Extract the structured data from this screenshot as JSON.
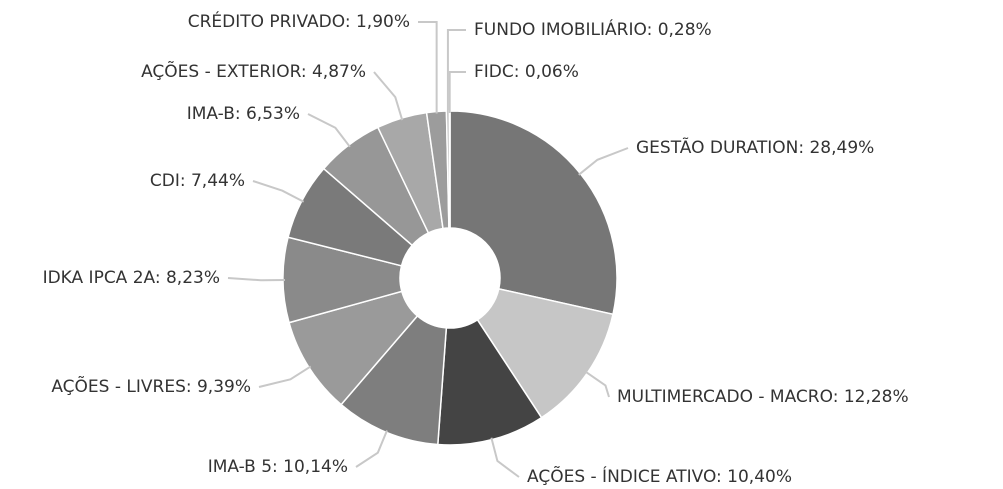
{
  "chart_data": {
    "type": "donut",
    "values": [
      28.49,
      12.28,
      10.4,
      10.14,
      9.39,
      8.23,
      7.44,
      6.53,
      4.87,
      1.9,
      0.28,
      0.06
    ],
    "value_labels": [
      "GESTÃO DURATION: 28,49%",
      "MULTIMERCADO - MACRO: 12,28%",
      "AÇÕES - ÍNDICE ATIVO: 10,40%",
      "IMA-B 5: 10,14%",
      "AÇÕES - LIVRES: 9,39%",
      "IDKA IPCA 2A: 8,23%",
      "CDI: 7,44%",
      "IMA-B: 6,53%",
      "AÇÕES - EXTERIOR: 4,87%",
      "CRÉDITO PRIVADO: 1,90%",
      "FUNDO IMOBILIÁRIO: 0,28%",
      "FIDC: 0,06%"
    ],
    "colors": [
      "#767676",
      "#c6c6c6",
      "#444444",
      "#7e7e7e",
      "#9a9a9a",
      "#8a8a8a",
      "#7a7a7a",
      "#979797",
      "#a8a8a8",
      "#9c9c9c",
      "#b8b8b8",
      "#d8d8d8"
    ]
  }
}
